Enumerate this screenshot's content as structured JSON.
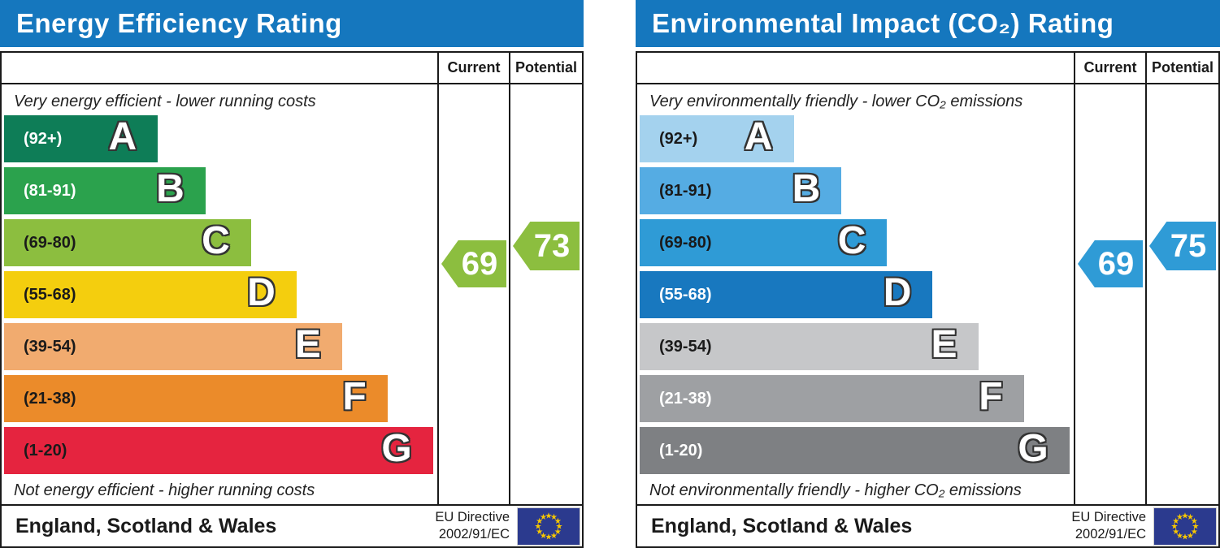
{
  "header_color": "#1577be",
  "eu_flag": {
    "bg": "#2b3a8e",
    "star_color": "#f7c700"
  },
  "panels": [
    {
      "title": "Energy Efficiency Rating",
      "columns": {
        "current": "Current",
        "potential": "Potential"
      },
      "top_caption": "Very energy efficient - lower running costs",
      "bottom_caption": "Not energy efficient - higher running costs",
      "bands": [
        {
          "letter": "A",
          "range": "(92+)",
          "color": "#0e7d57",
          "width": "35.5%",
          "text_color": "#ffffff"
        },
        {
          "letter": "B",
          "range": "(81-91)",
          "color": "#2ba24d",
          "width": "46.5%",
          "text_color": "#ffffff"
        },
        {
          "letter": "C",
          "range": "(69-80)",
          "color": "#8cbe3f",
          "width": "57%",
          "text_color": "#1a1a1a"
        },
        {
          "letter": "D",
          "range": "(55-68)",
          "color": "#f4ce0e",
          "width": "67.5%",
          "text_color": "#1a1a1a"
        },
        {
          "letter": "E",
          "range": "(39-54)",
          "color": "#f1ab6f",
          "width": "78%",
          "text_color": "#1a1a1a"
        },
        {
          "letter": "F",
          "range": "(21-38)",
          "color": "#eb8b2a",
          "width": "88.5%",
          "text_color": "#1a1a1a"
        },
        {
          "letter": "G",
          "range": "(1-20)",
          "color": "#e5243f",
          "width": "99%",
          "text_color": "#1a1a1a"
        }
      ],
      "current": {
        "label": "69",
        "color": "#8cbe3f"
      },
      "potential": {
        "label": "73",
        "color": "#8cbe3f"
      },
      "footer": {
        "region": "England, Scotland & Wales",
        "directive_line1": "EU Directive",
        "directive_line2": "2002/91/EC"
      }
    },
    {
      "title": "Environmental Impact (CO₂) Rating",
      "columns": {
        "current": "Current",
        "potential": "Potential"
      },
      "top_caption": "Very environmentally friendly - lower CO₂ emissions",
      "bottom_caption": "Not environmentally friendly - higher CO₂ emissions",
      "bands": [
        {
          "letter": "A",
          "range": "(92+)",
          "color": "#a4d2ee",
          "width": "35.5%",
          "text_color": "#1a1a1a"
        },
        {
          "letter": "B",
          "range": "(81-91)",
          "color": "#55ace3",
          "width": "46.5%",
          "text_color": "#1a1a1a"
        },
        {
          "letter": "C",
          "range": "(69-80)",
          "color": "#2f9bd6",
          "width": "57%",
          "text_color": "#1a1a1a"
        },
        {
          "letter": "D",
          "range": "(55-68)",
          "color": "#1878bf",
          "width": "67.5%",
          "text_color": "#ffffff"
        },
        {
          "letter": "E",
          "range": "(39-54)",
          "color": "#c6c7c9",
          "width": "78%",
          "text_color": "#1a1a1a"
        },
        {
          "letter": "F",
          "range": "(21-38)",
          "color": "#9ea0a3",
          "width": "88.5%",
          "text_color": "#ffffff"
        },
        {
          "letter": "G",
          "range": "(1-20)",
          "color": "#7e8083",
          "width": "99%",
          "text_color": "#ffffff"
        }
      ],
      "current": {
        "label": "69",
        "color": "#2f9bd6"
      },
      "potential": {
        "label": "75",
        "color": "#2f9bd6"
      },
      "footer": {
        "region": "England, Scotland & Wales",
        "directive_line1": "EU Directive",
        "directive_line2": "2002/91/EC"
      }
    }
  ],
  "chart_data": [
    {
      "type": "bar",
      "title": "Energy Efficiency Rating",
      "categories": [
        "A",
        "B",
        "C",
        "D",
        "E",
        "F",
        "G"
      ],
      "band_ranges": [
        "92+",
        "81-91",
        "69-80",
        "55-68",
        "39-54",
        "21-38",
        "1-20"
      ],
      "values": [
        35.5,
        46.5,
        57,
        67.5,
        78,
        88.5,
        99
      ],
      "value_unit": "relative band bar width %",
      "current": {
        "value": 69,
        "band": "C"
      },
      "potential": {
        "value": 73,
        "band": "C"
      },
      "top_caption": "Very energy efficient - lower running costs",
      "bottom_caption": "Not energy efficient - higher running costs",
      "region": "England, Scotland & Wales",
      "directive": "EU Directive 2002/91/EC",
      "legend_position": "none",
      "grid": false
    },
    {
      "type": "bar",
      "title": "Environmental Impact (CO₂) Rating",
      "categories": [
        "A",
        "B",
        "C",
        "D",
        "E",
        "F",
        "G"
      ],
      "band_ranges": [
        "92+",
        "81-91",
        "69-80",
        "55-68",
        "39-54",
        "21-38",
        "1-20"
      ],
      "values": [
        35.5,
        46.5,
        57,
        67.5,
        78,
        88.5,
        99
      ],
      "value_unit": "relative band bar width %",
      "current": {
        "value": 69,
        "band": "C"
      },
      "potential": {
        "value": 75,
        "band": "C"
      },
      "top_caption": "Very environmentally friendly - lower CO₂ emissions",
      "bottom_caption": "Not environmentally friendly - higher CO₂ emissions",
      "region": "England, Scotland & Wales",
      "directive": "EU Directive 2002/91/EC",
      "legend_position": "none",
      "grid": false
    }
  ]
}
